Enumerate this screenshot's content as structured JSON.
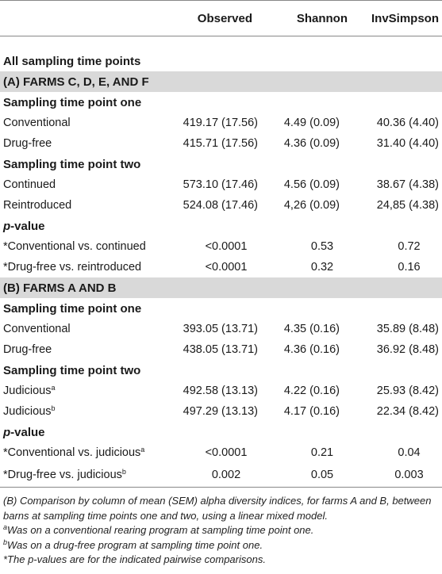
{
  "columns": [
    "Observed",
    "Shannon",
    "InvSimpson"
  ],
  "section_all": "All sampling time points",
  "group_a": {
    "title": "(A) FARMS C, D, E, AND F",
    "tp1_title": "Sampling time point one",
    "tp1_rows": [
      {
        "label": "Conventional",
        "observed": "419.17 (17.56)",
        "shannon": "4.49 (0.09)",
        "invsimpson": "40.36 (4.40)"
      },
      {
        "label": "Drug-free",
        "observed": "415.71 (17.56)",
        "shannon": "4.36 (0.09)",
        "invsimpson": "31.40 (4.40)"
      }
    ],
    "tp2_title": "Sampling time point two",
    "tp2_rows": [
      {
        "label": "Continued",
        "observed": "573.10 (17.46)",
        "shannon": "4.56 (0.09)",
        "invsimpson": "38.67 (4.38)"
      },
      {
        "label": "Reintroduced",
        "observed": "524.08 (17.46)",
        "shannon": "4,26 (0.09)",
        "invsimpson": "24,85 (4.38)"
      }
    ],
    "pvalue_title_p": "p",
    "pvalue_title_rest": "-value",
    "pvalue_rows": [
      {
        "label": "*Conventional vs. continued",
        "observed": "<0.0001",
        "shannon": "0.53",
        "invsimpson": "0.72"
      },
      {
        "label": "*Drug-free vs. reintroduced",
        "observed": "<0.0001",
        "shannon": "0.32",
        "invsimpson": "0.16"
      }
    ]
  },
  "group_b": {
    "title": "(B) FARMS A AND B",
    "tp1_title": "Sampling time point one",
    "tp1_rows": [
      {
        "label": "Conventional",
        "observed": "393.05 (13.71)",
        "shannon": "4.35 (0.16)",
        "invsimpson": "35.89 (8.48)"
      },
      {
        "label": "Drug-free",
        "observed": "438.05 (13.71)",
        "shannon": "4.36 (0.16)",
        "invsimpson": "36.92 (8.48)"
      }
    ],
    "tp2_title": "Sampling time point two",
    "tp2_rows": [
      {
        "label": "Judicious",
        "sup": "a",
        "observed": "492.58 (13.13)",
        "shannon": "4.22 (0.16)",
        "invsimpson": "25.93 (8.42)"
      },
      {
        "label": "Judicious",
        "sup": "b",
        "observed": "497.29 (13.13)",
        "shannon": "4.17 (0.16)",
        "invsimpson": "22.34 (8.42)"
      }
    ],
    "pvalue_title_p": "p",
    "pvalue_title_rest": "-value",
    "pvalue_rows": [
      {
        "label": "*Conventional vs. judicious",
        "sup": "a",
        "observed": "<0.0001",
        "shannon": "0.21",
        "invsimpson": "0.04"
      },
      {
        "label": "*Drug-free vs. judicious",
        "sup": "b",
        "observed": "0.002",
        "shannon": "0.05",
        "invsimpson": "0.003"
      }
    ]
  },
  "footnotes": {
    "main": "(B) Comparison by column of mean (SEM) alpha diversity indices, for farms A and B, between barns at sampling time points one and two, using a linear mixed model.",
    "a_mark": "a",
    "a_text": "Was on a conventional rearing program at sampling time point one.",
    "b_mark": "b",
    "b_text": "Was on a drug-free program at sampling time point one.",
    "star_text": "*The p-values are for the indicated pairwise comparisons."
  }
}
